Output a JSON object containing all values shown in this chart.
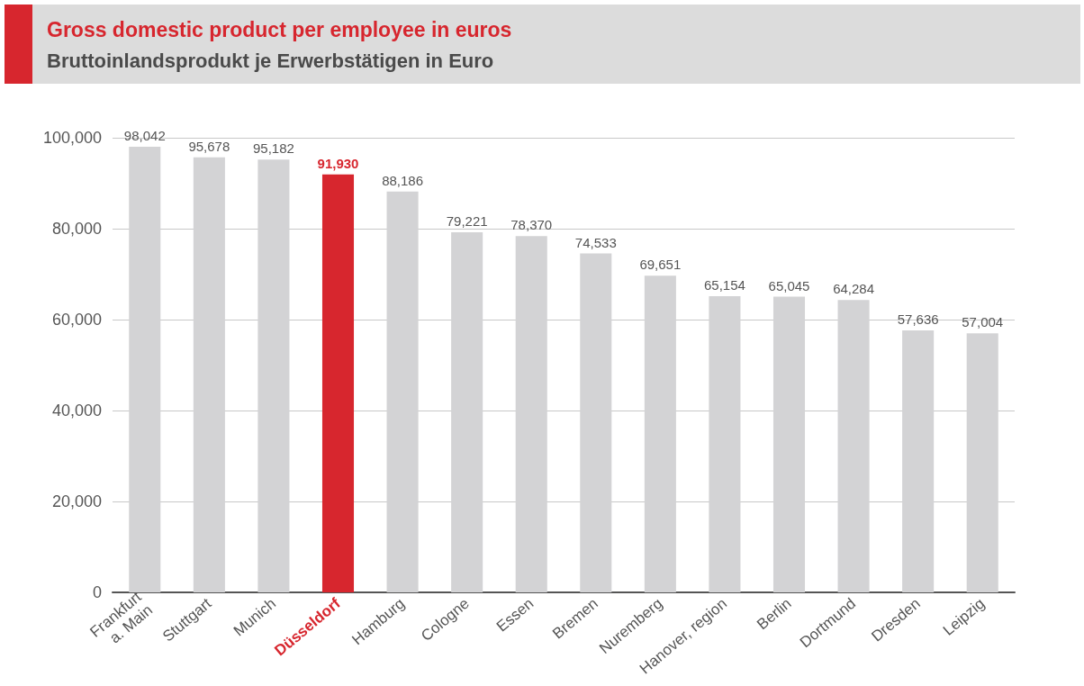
{
  "chart_data": {
    "type": "bar",
    "title": "Gross domestic product per employee in euros",
    "subtitle": "Bruttoinlandsprodukt je Erwerbstätigen in Euro",
    "categories": [
      "Frankfurt\na. Main",
      "Stuttgart",
      "Munich",
      "Düsseldorf",
      "Hamburg",
      "Cologne",
      "Essen",
      "Bremen",
      "Nuremberg",
      "Hanover, region",
      "Berlin",
      "Dortmund",
      "Dresden",
      "Leipzig"
    ],
    "values": [
      98042,
      95678,
      95182,
      91930,
      88186,
      79221,
      78370,
      74533,
      69651,
      65154,
      65045,
      64284,
      57636,
      57004
    ],
    "value_labels": [
      "98,042",
      "95,678",
      "95,182",
      "91,930",
      "88,186",
      "79,221",
      "78,370",
      "74,533",
      "69,651",
      "65,154",
      "65,045",
      "64,284",
      "57,636",
      "57,004"
    ],
    "colors": [
      "#d3d3d5",
      "#d3d3d5",
      "#d3d3d5",
      "#d7262e",
      "#d3d3d5",
      "#d3d3d5",
      "#d3d3d5",
      "#d3d3d5",
      "#d3d3d5",
      "#d3d3d5",
      "#d3d3d5",
      "#d3d3d5",
      "#d3d3d5",
      "#d3d3d5"
    ],
    "ylim": [
      0,
      100000
    ],
    "yticks": [
      0,
      {
        "value": 20000,
        "label": "20,000"
      },
      {
        "value": 40000,
        "label": "40,000"
      },
      {
        "value": 60000,
        "label": "60,000"
      },
      {
        "value": 80000,
        "label": "80,000"
      },
      {
        "value": 100000,
        "label": "100,000"
      }
    ],
    "grid": "y"
  }
}
